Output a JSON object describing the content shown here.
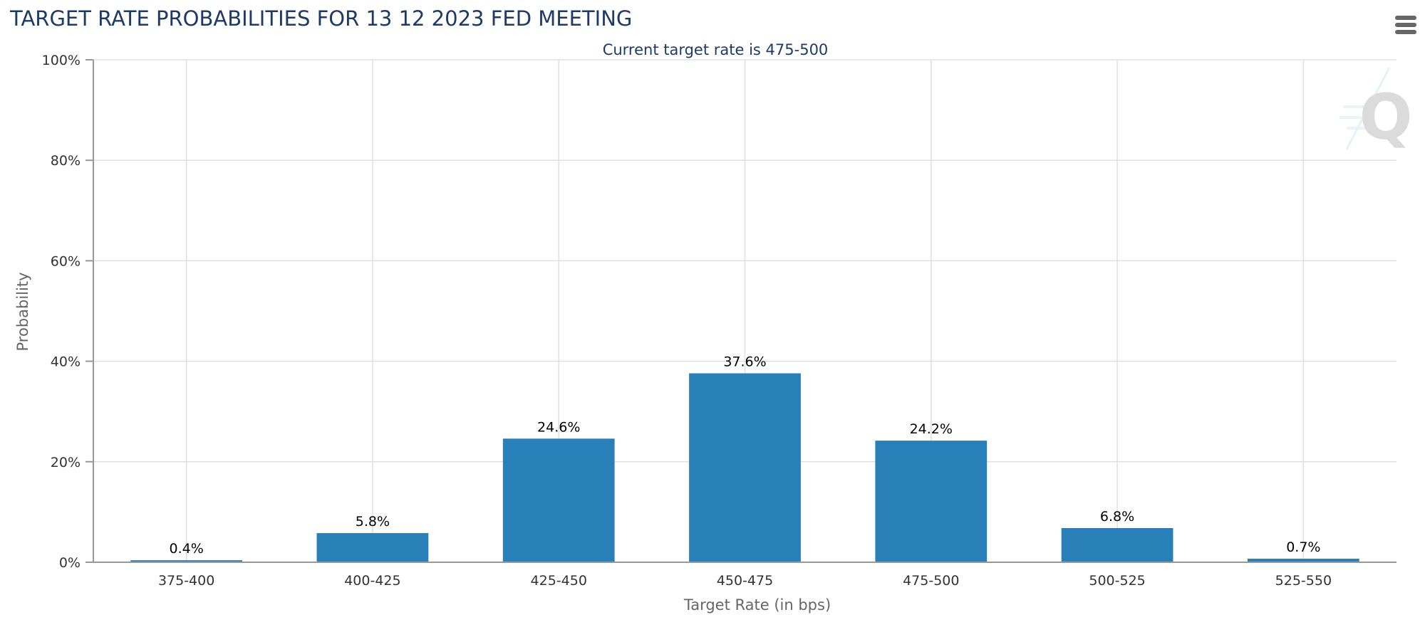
{
  "chart_data": {
    "type": "bar",
    "title": "TARGET RATE PROBABILITIES FOR 13 12 2023 FED MEETING",
    "subtitle": "Current target rate is 475-500",
    "xlabel": "Target Rate (in bps)",
    "ylabel": "Probability",
    "categories": [
      "375-400",
      "400-425",
      "425-450",
      "450-475",
      "475-500",
      "500-525",
      "525-550"
    ],
    "values": [
      0.4,
      5.8,
      24.6,
      37.6,
      24.2,
      6.8,
      0.7
    ],
    "data_labels": [
      "0.4%",
      "5.8%",
      "24.6%",
      "37.6%",
      "24.2%",
      "6.8%",
      "0.7%"
    ],
    "ylim": [
      0,
      100
    ],
    "yticks": [
      0,
      20,
      40,
      60,
      80,
      100
    ],
    "ytick_labels": [
      "0%",
      "20%",
      "40%",
      "60%",
      "80%",
      "100%"
    ],
    "grid": true,
    "legend": "none",
    "bar_color": "#2980b9"
  },
  "menu_icon": "hamburger-menu-icon",
  "watermark_icon": "q-logo-icon"
}
